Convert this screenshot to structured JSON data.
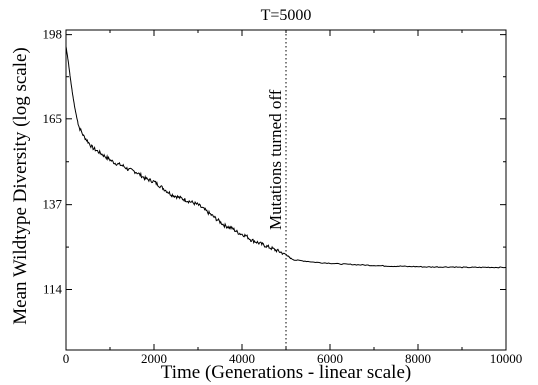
{
  "chart_data": {
    "type": "line",
    "title": "T=5000",
    "xlabel": "Time (Generations - linear scale)",
    "ylabel": "Mean Wildtype Diversity (log scale)",
    "xlim": [
      0,
      10000
    ],
    "ylim": [
      100,
      200
    ],
    "y_scale": "log",
    "x_ticks": [
      0,
      2000,
      4000,
      6000,
      8000,
      10000
    ],
    "y_ticks": [
      114,
      137,
      165,
      198
    ],
    "grid": false,
    "annotation": {
      "text": "Mutations turned off",
      "x": 5000,
      "style": "dotted-vertical-line"
    },
    "series": [
      {
        "x": [
          0,
          50,
          100,
          150,
          200,
          250,
          300,
          400,
          500,
          600,
          700,
          800,
          900,
          1000,
          1100,
          1200,
          1300,
          1400,
          1500,
          1600,
          1700,
          1800,
          1900,
          2000,
          2100,
          2200,
          2300,
          2400,
          2500,
          2600,
          2700,
          2800,
          2900,
          3000,
          3100,
          3200,
          3300,
          3400,
          3500,
          3600,
          3700,
          3800,
          3900,
          4000,
          4100,
          4200,
          4300,
          4400,
          4500,
          4600,
          4700,
          4800,
          4900,
          5000,
          5050,
          5100,
          5200,
          5400,
          5600,
          5800,
          6000,
          6200,
          6400,
          6600,
          6800,
          7000,
          7200,
          7400,
          7600,
          7800,
          8000,
          8200,
          8400,
          8600,
          8800,
          9000,
          9200,
          9400,
          9600,
          9800,
          10000
        ],
        "values": [
          193,
          187,
          180,
          174,
          169,
          165,
          162,
          159,
          157,
          155,
          154,
          153,
          152,
          151,
          150,
          149.5,
          149,
          148,
          147.5,
          147,
          146,
          145,
          144.5,
          144,
          143,
          142,
          141,
          140,
          139.5,
          139,
          138.5,
          138,
          137.5,
          137,
          136,
          135,
          134,
          133,
          132,
          131,
          130.5,
          130,
          129,
          128.5,
          128,
          127,
          126.5,
          126,
          125.5,
          125,
          124.5,
          124,
          123.5,
          123,
          122.5,
          122,
          121.5,
          121.3,
          121,
          120.8,
          120.7,
          120.5,
          120.4,
          120.3,
          120.2,
          120.1,
          120,
          119.9,
          119.9,
          119.8,
          119.8,
          119.7,
          119.7,
          119.7,
          119.7,
          119.6,
          119.6,
          119.6,
          119.6,
          119.6,
          119.6
        ]
      }
    ]
  }
}
